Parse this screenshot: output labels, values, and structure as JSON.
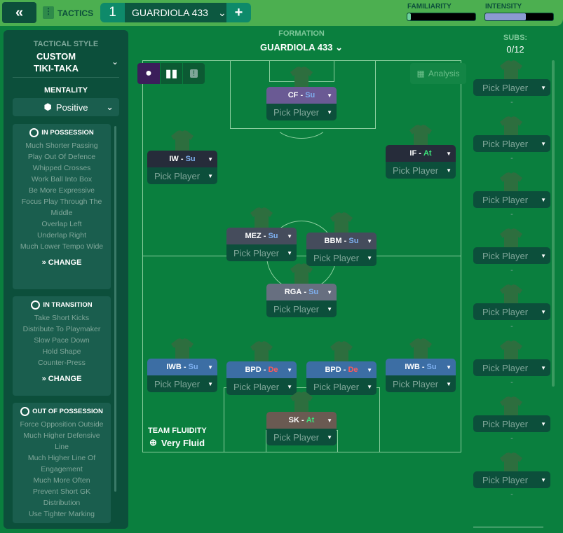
{
  "topbar": {
    "back_icon": "double-chevron-left-icon",
    "section_label": "TACTICS",
    "tactic_slot": "1",
    "tactic_name": "GUARDIOLA 433",
    "add_label": "+",
    "familiarity_label": "FAMILIARITY",
    "familiarity_level": 0.05,
    "intensity_label": "INTENSITY",
    "intensity_level": 0.6,
    "intensity_color": "#8c9ad2",
    "familiarity_color": "#6fd4a0"
  },
  "sidebar": {
    "style_label": "TACTICAL STYLE",
    "style_value": "CUSTOM\nTIKI-TAKA",
    "mentality_label": "MENTALITY",
    "mentality_value": "Positive",
    "in_possession": {
      "title": "IN POSSESSION",
      "items": [
        "Much Shorter Passing",
        "Play Out Of Defence",
        "Whipped Crosses",
        "Work Ball Into Box",
        "Be More Expressive",
        "Focus Play Through The Middle",
        "Overlap Left",
        "Underlap Right",
        "Much Lower Tempo Wide"
      ],
      "change": "CHANGE"
    },
    "in_transition": {
      "title": "IN TRANSITION",
      "items": [
        "Take Short Kicks",
        "Distribute To Playmaker",
        "Slow Pace Down",
        "Hold Shape",
        "Counter-Press"
      ],
      "change": "CHANGE"
    },
    "out_of_possession": {
      "title": "OUT OF POSSESSION",
      "items": [
        "Force Opposition Outside",
        "Much Higher Defensive Line",
        "Much Higher Line Of Engagement",
        "Much More Often",
        "Prevent Short GK Distribution",
        "Use Tighter Marking"
      ]
    }
  },
  "formation": {
    "label": "FORMATION",
    "name": "GUARDIOLA 433",
    "analysis_label": "Analysis"
  },
  "positions": [
    {
      "role": "CF",
      "duty": "Su",
      "color": "#6a5a94"
    },
    {
      "role": "IW",
      "duty": "Su",
      "color": "#262c3a"
    },
    {
      "role": "IF",
      "duty": "At",
      "color": "#262c3a"
    },
    {
      "role": "MEZ",
      "duty": "Su",
      "color": "#454c5c"
    },
    {
      "role": "BBM",
      "duty": "Su",
      "color": "#454c5c"
    },
    {
      "role": "RGA",
      "duty": "Su",
      "color": "#676f80"
    },
    {
      "role": "IWB",
      "duty": "Su",
      "color": "#3c6ea4"
    },
    {
      "role": "BPD",
      "duty": "De",
      "color": "#3c6ea4"
    },
    {
      "role": "BPD",
      "duty": "De",
      "color": "#3c6ea4"
    },
    {
      "role": "IWB",
      "duty": "Su",
      "color": "#3c6ea4"
    },
    {
      "role": "SK",
      "duty": "At",
      "color": "#6a5a52"
    }
  ],
  "pick_label": "Pick Player",
  "duty_colors": {
    "Su": "#7eb0f0",
    "At": "#3de27a",
    "De": "#ff5a5a"
  },
  "fluidity": {
    "label": "TEAM FLUIDITY",
    "value": "Very Fluid"
  },
  "subs": {
    "label": "SUBS:",
    "count": "0/12",
    "slots": [
      "Pick Player",
      "Pick Player",
      "Pick Player",
      "Pick Player",
      "Pick Player",
      "Pick Player",
      "Pick Player",
      "Pick Player"
    ],
    "empty": "-"
  }
}
